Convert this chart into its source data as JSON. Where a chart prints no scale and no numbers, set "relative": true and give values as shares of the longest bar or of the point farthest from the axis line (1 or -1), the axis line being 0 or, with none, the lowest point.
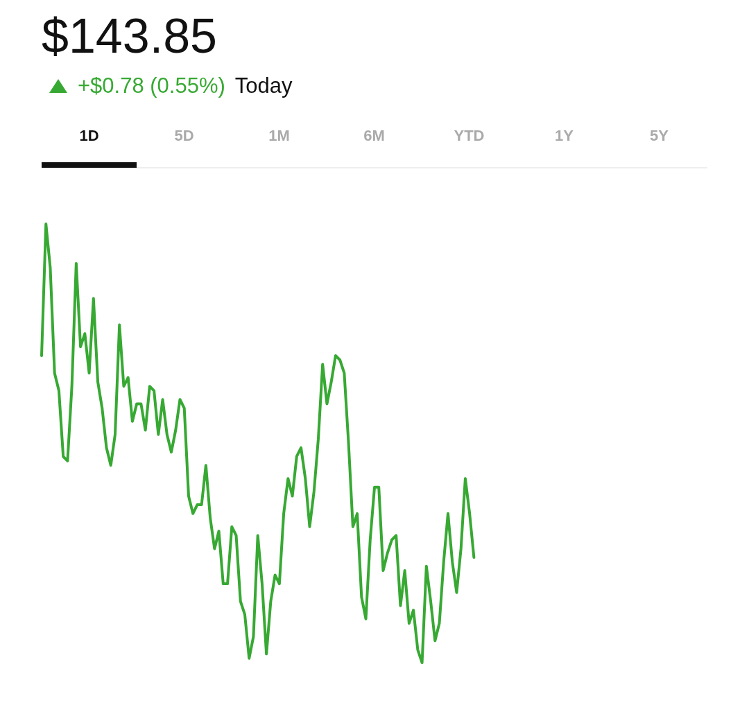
{
  "chart_data": {
    "type": "line",
    "title": "$143.85",
    "subtitle": "+$0.78 (0.55%) Today",
    "relative": true,
    "annotations": [
      "1D",
      "5D",
      "1M",
      "6M",
      "YTD",
      "1Y",
      "5Y"
    ],
    "categories": [
      null,
      null,
      null,
      null,
      null,
      null,
      null,
      null,
      null,
      null,
      null,
      null,
      null,
      null,
      null,
      null,
      null,
      null,
      null,
      null,
      null,
      null,
      null,
      null,
      null,
      null,
      null,
      null,
      null,
      null,
      null,
      null,
      null,
      null,
      null,
      null,
      null,
      null,
      null,
      null,
      null,
      null,
      null,
      null,
      null,
      null,
      null,
      null,
      null,
      null,
      null,
      null,
      null,
      null,
      null,
      null,
      null,
      null,
      null,
      null,
      null,
      null,
      null,
      null,
      null,
      null,
      null,
      null,
      null,
      null,
      null,
      null,
      null,
      null,
      null,
      null,
      null,
      null,
      null,
      null,
      null,
      null,
      null,
      null,
      null,
      null,
      null,
      null,
      null,
      null,
      null,
      null,
      null,
      null,
      null,
      null,
      null,
      null,
      null,
      null,
      null,
      null,
      null,
      null,
      null,
      null,
      null,
      null,
      null,
      null,
      null,
      null,
      null,
      null,
      null,
      null,
      null,
      null,
      null,
      null,
      null,
      null,
      null,
      null,
      null,
      null,
      null,
      null,
      null,
      null,
      null,
      null,
      null,
      null,
      null,
      null,
      null,
      null,
      null,
      null,
      null,
      null,
      null,
      null,
      null,
      null,
      null,
      null,
      null,
      null,
      null,
      null,
      null,
      null,
      null
    ],
    "series": [
      {
        "color": "#37a933",
        "values": [
          0.7,
          1.0,
          0.9,
          0.66,
          0.62,
          0.47,
          0.46,
          0.63,
          0.91,
          0.72,
          0.75,
          0.66,
          0.83,
          0.64,
          0.58,
          0.49,
          0.45,
          0.52,
          0.77,
          0.63,
          0.65,
          0.55,
          0.59,
          0.59,
          0.53,
          0.63,
          0.62,
          0.52,
          0.6,
          0.52,
          0.48,
          0.53,
          0.6,
          0.58,
          0.38,
          0.34,
          0.36,
          0.36,
          0.45,
          0.33,
          0.26,
          0.3,
          0.18,
          0.18,
          0.31,
          0.29,
          0.14,
          0.11,
          0.01,
          0.06,
          0.29,
          0.18,
          0.02,
          0.14,
          0.2,
          0.18,
          0.34,
          0.42,
          0.38,
          0.47,
          0.49,
          0.42,
          0.31,
          0.39,
          0.51,
          0.68,
          0.59,
          0.64,
          0.7,
          0.69,
          0.66,
          0.5,
          0.31,
          0.34,
          0.15,
          0.1,
          0.28,
          0.4,
          0.4,
          0.21,
          0.25,
          0.28,
          0.29,
          0.13,
          0.21,
          0.09,
          0.12,
          0.03,
          0,
          0.22,
          0.14,
          0.05,
          0.09,
          0.23,
          0.34,
          0.23,
          0.16,
          0.26,
          0.42,
          0.34,
          0.24,
          null,
          null,
          null,
          null,
          null,
          null,
          null,
          null,
          null,
          null,
          null,
          null,
          null,
          null,
          null,
          null,
          null,
          null,
          null,
          null,
          null,
          null,
          null,
          null,
          null,
          null,
          null,
          null,
          null,
          null,
          null,
          null,
          null,
          null,
          null,
          null,
          null,
          null,
          null,
          null,
          null,
          null,
          null,
          null,
          null,
          null,
          null,
          null,
          null,
          null,
          null,
          null,
          null,
          null
        ]
      }
    ]
  }
}
